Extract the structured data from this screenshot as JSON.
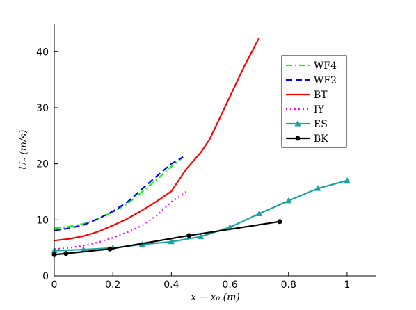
{
  "chart_data": {
    "type": "line",
    "title": "",
    "xlabel": "x − x₀ (m)",
    "ylabel": "Uₑ (m/s)",
    "xlim": [
      0,
      1.1
    ],
    "ylim": [
      0,
      45
    ],
    "xticks": [
      0,
      0.2,
      0.4,
      0.6,
      0.8,
      1
    ],
    "xtick_labels": [
      "0",
      "0.2",
      "0.4",
      "0.6",
      "0.8",
      "1"
    ],
    "yticks": [
      0,
      10,
      20,
      30,
      40
    ],
    "ytick_labels": [
      "0",
      "10",
      "20",
      "30",
      "40"
    ],
    "grid": false,
    "legend_position": "top-right",
    "series": [
      {
        "name": "WF4",
        "color": "#00ff00",
        "dash": "dashdot",
        "marker": "none",
        "x": [
          0,
          0.05,
          0.1,
          0.15,
          0.2,
          0.25,
          0.3,
          0.35,
          0.4,
          0.44
        ],
        "y": [
          8.5,
          8.8,
          9.3,
          10.2,
          11.4,
          12.9,
          15.0,
          17.2,
          19.5,
          21.2
        ]
      },
      {
        "name": "WF2",
        "color": "#0000ff",
        "dash": "dashed",
        "marker": "none",
        "x": [
          0,
          0.05,
          0.1,
          0.15,
          0.2,
          0.25,
          0.3,
          0.35,
          0.4,
          0.44
        ],
        "y": [
          8.1,
          8.5,
          9.1,
          10.2,
          11.5,
          13.2,
          15.5,
          17.8,
          20.0,
          21.2
        ]
      },
      {
        "name": "BT",
        "color": "#ff0000",
        "dash": "solid",
        "marker": "none",
        "x": [
          0,
          0.05,
          0.1,
          0.15,
          0.2,
          0.25,
          0.3,
          0.35,
          0.4,
          0.45,
          0.5,
          0.53,
          0.6,
          0.65,
          0.7
        ],
        "y": [
          6.3,
          6.6,
          7.1,
          7.9,
          9.0,
          10.2,
          11.7,
          13.3,
          15.1,
          19.0,
          22.0,
          24.3,
          32.0,
          37.5,
          42.5
        ]
      },
      {
        "name": "IY",
        "color": "#ff00ff",
        "dash": "dotted",
        "marker": "none",
        "x": [
          0,
          0.05,
          0.1,
          0.15,
          0.2,
          0.25,
          0.3,
          0.35,
          0.4,
          0.45
        ],
        "y": [
          4.8,
          5.0,
          5.4,
          6.0,
          6.8,
          7.8,
          9.0,
          10.8,
          13.2,
          15.0
        ]
      },
      {
        "name": "ES",
        "color": "#1aa3a3",
        "dash": "solid",
        "marker": "triangle",
        "x": [
          0,
          0.1,
          0.2,
          0.3,
          0.4,
          0.5,
          0.6,
          0.7,
          0.8,
          0.9,
          1.0
        ],
        "y": [
          4.5,
          4.7,
          5.0,
          5.6,
          6.1,
          7.0,
          8.7,
          11.1,
          13.4,
          15.6,
          17.0
        ]
      },
      {
        "name": "BK",
        "color": "#000000",
        "dash": "solid",
        "marker": "circle",
        "x": [
          0,
          0.04,
          0.19,
          0.46,
          0.77
        ],
        "y": [
          3.8,
          4.0,
          4.8,
          7.2,
          9.7
        ]
      }
    ]
  }
}
